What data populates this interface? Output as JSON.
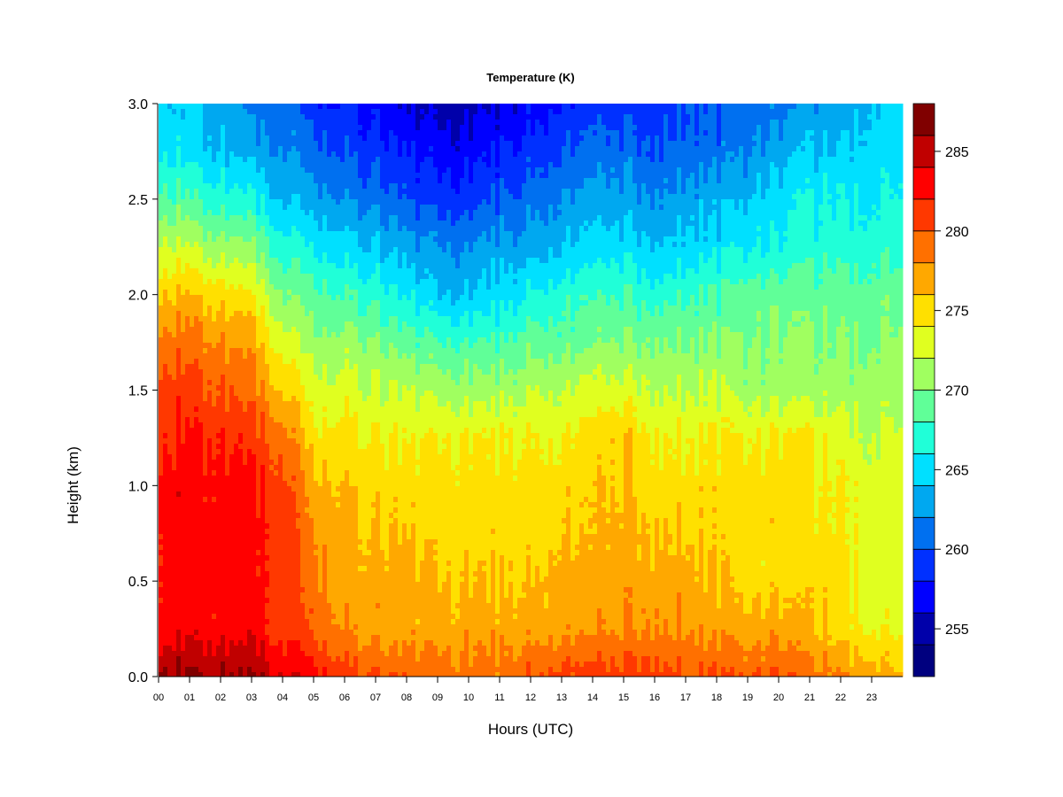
{
  "chart_data": {
    "type": "heatmap",
    "title": "Temperature (K)",
    "xlabel": "Hours (UTC)",
    "ylabel": "Height (km)",
    "xlim": [
      0,
      24
    ],
    "ylim": [
      0,
      3.0
    ],
    "x_tick_labels": [
      "00",
      "01",
      "02",
      "03",
      "04",
      "05",
      "06",
      "07",
      "08",
      "09",
      "10",
      "11",
      "12",
      "13",
      "14",
      "15",
      "16",
      "17",
      "18",
      "19",
      "20",
      "21",
      "22",
      "23"
    ],
    "y_ticks": [
      0.0,
      0.5,
      1.0,
      1.5,
      2.0,
      2.5,
      3.0
    ],
    "y_tick_labels": [
      "0.0",
      "0.5",
      "1.0",
      "1.5",
      "2.0",
      "2.5",
      "3.0"
    ],
    "colorbar": {
      "levels": [
        252,
        254,
        256,
        258,
        260,
        262,
        264,
        266,
        268,
        270,
        272,
        274,
        276,
        278,
        280,
        282,
        284,
        286,
        288
      ],
      "colors": [
        "#00007F",
        "#0000AA",
        "#0000FF",
        "#0030FF",
        "#0070F0",
        "#00A8F0",
        "#00E0FF",
        "#20FFD8",
        "#60FF98",
        "#A0FF60",
        "#E0FF20",
        "#FFE000",
        "#FFA800",
        "#FF7000",
        "#FF3800",
        "#FF0000",
        "#C00000",
        "#800000"
      ],
      "tick_values": [
        255,
        260,
        265,
        270,
        275,
        280,
        285
      ],
      "tick_labels": [
        "255",
        "260",
        "265",
        "270",
        "275",
        "280",
        "285"
      ]
    },
    "x_hours": [
      0,
      1,
      2,
      3,
      4,
      5,
      6,
      7,
      8,
      9,
      10,
      11,
      12,
      13,
      14,
      15,
      16,
      17,
      18,
      19,
      20,
      21,
      22,
      23,
      24
    ],
    "heights_km": [
      0,
      0.25,
      0.5,
      0.75,
      1.0,
      1.25,
      1.5,
      1.75,
      2.0,
      2.25,
      2.5,
      2.75,
      3.0
    ],
    "temperature_K": [
      [
        287,
        283,
        283,
        283,
        283,
        282,
        281,
        279,
        276,
        273,
        269,
        266,
        265
      ],
      [
        286,
        283,
        283,
        283,
        283,
        282,
        281,
        279,
        276,
        272,
        268,
        265,
        264
      ],
      [
        286,
        283,
        283,
        283,
        283,
        282,
        280,
        278,
        275,
        271,
        267,
        264,
        263
      ],
      [
        286,
        283,
        283,
        283,
        282,
        281,
        279,
        277,
        274,
        270,
        266,
        263,
        261
      ],
      [
        284,
        281,
        281,
        281,
        281,
        279,
        276,
        273,
        270,
        267,
        264,
        262,
        261
      ],
      [
        283,
        280,
        279,
        278,
        277,
        275,
        273,
        271,
        269,
        266,
        263,
        261,
        259
      ],
      [
        281,
        278,
        277,
        277,
        276,
        275,
        273,
        271,
        268,
        265,
        262,
        260,
        258
      ],
      [
        280,
        277,
        277,
        276,
        275,
        274,
        272,
        270,
        267,
        264,
        261,
        259,
        257
      ],
      [
        280,
        277,
        277,
        276,
        275,
        274,
        272,
        269,
        266,
        263,
        260,
        258,
        256
      ],
      [
        279,
        277,
        276,
        275,
        275,
        274,
        271,
        268,
        264,
        262,
        259,
        257,
        255
      ],
      [
        279,
        277,
        276,
        275,
        275,
        274,
        271,
        268,
        264,
        262,
        259,
        257,
        255
      ],
      [
        279,
        277,
        276,
        275,
        275,
        274,
        271,
        268,
        265,
        263,
        260,
        258,
        256
      ],
      [
        280,
        277,
        276,
        275,
        275,
        274,
        272,
        269,
        266,
        263,
        261,
        259,
        257
      ],
      [
        281,
        277,
        277,
        276,
        275,
        274,
        272,
        269,
        267,
        264,
        262,
        260,
        258
      ],
      [
        281,
        278,
        277,
        276,
        276,
        275,
        273,
        270,
        268,
        265,
        263,
        261,
        259
      ],
      [
        281,
        278,
        277,
        277,
        276,
        276,
        273,
        270,
        268,
        265,
        263,
        261,
        259
      ],
      [
        281,
        278,
        277,
        276,
        275,
        274,
        272,
        270,
        267,
        264,
        262,
        260,
        259
      ],
      [
        280,
        278,
        277,
        276,
        275,
        274,
        272,
        270,
        268,
        265,
        263,
        261,
        260
      ],
      [
        280,
        277,
        276,
        275,
        275,
        274,
        272,
        270,
        268,
        265,
        263,
        261,
        260
      ],
      [
        280,
        277,
        275,
        275,
        275,
        274,
        271,
        270,
        269,
        266,
        264,
        262,
        261
      ],
      [
        280,
        277,
        275,
        275,
        275,
        274,
        271,
        270,
        269,
        266,
        265,
        263,
        261
      ],
      [
        279,
        276,
        275,
        275,
        274,
        274,
        271,
        270,
        269,
        267,
        266,
        264,
        262
      ],
      [
        278,
        275,
        275,
        274,
        274,
        273,
        271,
        270,
        269,
        267,
        266,
        264,
        263
      ],
      [
        277,
        274,
        273,
        273,
        273,
        272,
        271,
        270,
        269,
        267,
        266,
        265,
        264
      ],
      [
        276,
        273,
        273,
        273,
        273,
        272,
        271,
        270,
        269,
        267,
        266,
        265,
        264
      ]
    ]
  }
}
